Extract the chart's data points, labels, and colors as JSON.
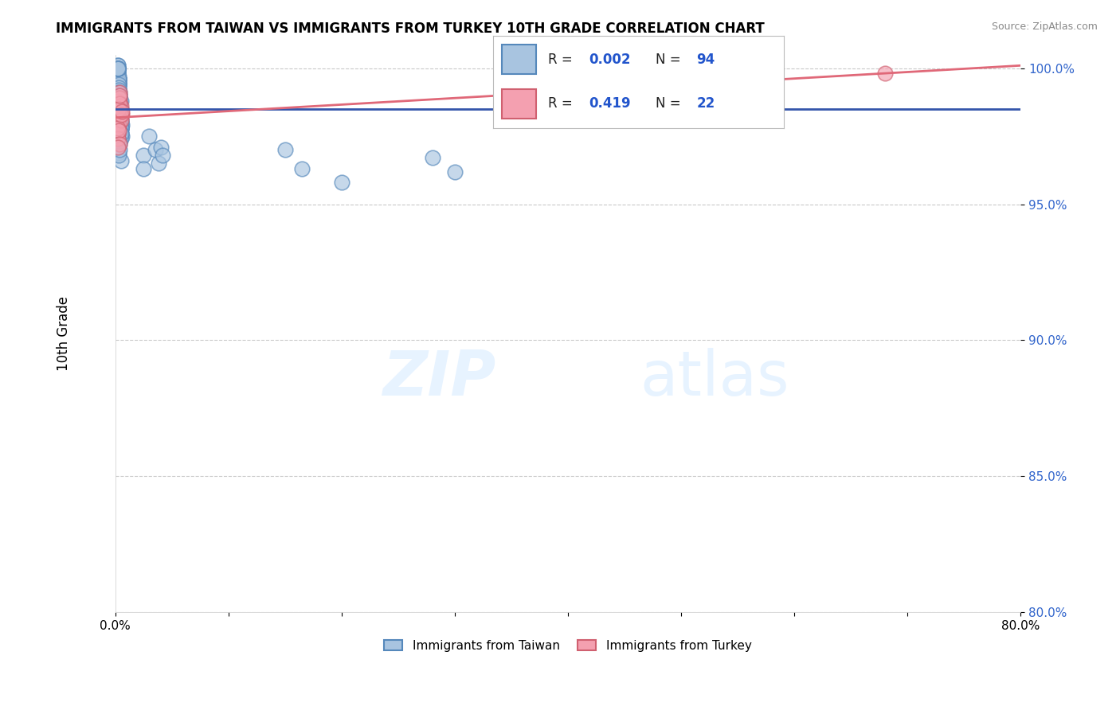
{
  "title": "IMMIGRANTS FROM TAIWAN VS IMMIGRANTS FROM TURKEY 10TH GRADE CORRELATION CHART",
  "source": "Source: ZipAtlas.com",
  "ylabel": "10th Grade",
  "x_min": 0.0,
  "x_max": 0.8,
  "y_min": 0.8,
  "y_max": 1.005,
  "x_ticks": [
    0.0,
    0.1,
    0.2,
    0.3,
    0.4,
    0.5,
    0.6,
    0.7,
    0.8
  ],
  "x_tick_labels": [
    "0.0%",
    "",
    "",
    "",
    "",
    "",
    "",
    "",
    "80.0%"
  ],
  "y_ticks": [
    0.8,
    0.85,
    0.9,
    0.95,
    1.0
  ],
  "y_tick_labels": [
    "80.0%",
    "85.0%",
    "90.0%",
    "95.0%",
    "100.0%"
  ],
  "taiwan_color": "#a8c4e0",
  "turkey_color": "#f4a0b0",
  "taiwan_edge_color": "#5588bb",
  "turkey_edge_color": "#d06070",
  "trend_taiwan_color": "#3355aa",
  "trend_turkey_color": "#e06878",
  "legend_taiwan_label": "Immigrants from Taiwan",
  "legend_turkey_label": "Immigrants from Turkey",
  "r_taiwan": "0.002",
  "n_taiwan": "94",
  "r_turkey": "0.419",
  "n_turkey": "22",
  "taiwan_x": [
    0.002,
    0.003,
    0.004,
    0.002,
    0.005,
    0.003,
    0.004,
    0.003,
    0.002,
    0.005,
    0.003,
    0.004,
    0.005,
    0.003,
    0.002,
    0.004,
    0.003,
    0.003,
    0.002,
    0.004,
    0.005,
    0.003,
    0.006,
    0.004,
    0.002,
    0.004,
    0.003,
    0.004,
    0.002,
    0.003,
    0.005,
    0.003,
    0.002,
    0.005,
    0.003,
    0.004,
    0.003,
    0.002,
    0.004,
    0.003,
    0.003,
    0.002,
    0.004,
    0.003,
    0.005,
    0.003,
    0.002,
    0.006,
    0.004,
    0.003,
    0.005,
    0.002,
    0.004,
    0.003,
    0.004,
    0.002,
    0.005,
    0.003,
    0.005,
    0.004,
    0.002,
    0.004,
    0.003,
    0.005,
    0.004,
    0.002,
    0.005,
    0.003,
    0.004,
    0.005,
    0.002,
    0.004,
    0.003,
    0.004,
    0.002,
    0.005,
    0.025,
    0.03,
    0.035,
    0.15,
    0.165,
    0.2,
    0.28,
    0.3,
    0.025,
    0.04,
    0.038,
    0.042,
    0.004,
    0.003,
    0.005,
    0.004,
    0.003,
    0.004
  ],
  "taiwan_y": [
    0.998,
    0.994,
    0.99,
    0.997,
    0.988,
    0.993,
    0.991,
    0.996,
    0.989,
    0.985,
    0.995,
    0.987,
    0.983,
    0.994,
    0.999,
    0.982,
    0.996,
    0.986,
    1.0,
    0.984,
    0.981,
    0.995,
    0.979,
    0.99,
    0.998,
    0.98,
    0.994,
    0.985,
    0.997,
    0.992,
    0.978,
    0.996,
    0.999,
    0.978,
    0.991,
    0.984,
    0.997,
    1.0,
    0.982,
    0.989,
    0.995,
    1.001,
    0.983,
    0.99,
    0.977,
    0.996,
    1.0,
    0.975,
    0.989,
    0.994,
    0.981,
    1.001,
    0.979,
    0.993,
    0.988,
    1.0,
    0.98,
    0.992,
    0.976,
    0.987,
    1.0,
    0.978,
    0.991,
    0.979,
    0.986,
    1.0,
    0.974,
    0.99,
    0.985,
    0.978,
    1.0,
    0.977,
    0.989,
    0.983,
    1.0,
    0.976,
    0.968,
    0.975,
    0.97,
    0.97,
    0.963,
    0.958,
    0.967,
    0.962,
    0.963,
    0.971,
    0.965,
    0.968,
    0.972,
    0.969,
    0.966,
    0.973,
    0.968,
    0.97
  ],
  "turkey_x": [
    0.002,
    0.003,
    0.004,
    0.002,
    0.005,
    0.003,
    0.004,
    0.002,
    0.006,
    0.003,
    0.004,
    0.005,
    0.002,
    0.003,
    0.004,
    0.002,
    0.005,
    0.003,
    0.004,
    0.006,
    0.68,
    0.002
  ],
  "turkey_y": [
    0.988,
    0.984,
    0.991,
    0.98,
    0.986,
    0.982,
    0.989,
    0.976,
    0.983,
    0.979,
    0.987,
    0.981,
    0.974,
    0.985,
    0.99,
    0.978,
    0.983,
    0.977,
    0.972,
    0.984,
    0.998,
    0.971
  ]
}
